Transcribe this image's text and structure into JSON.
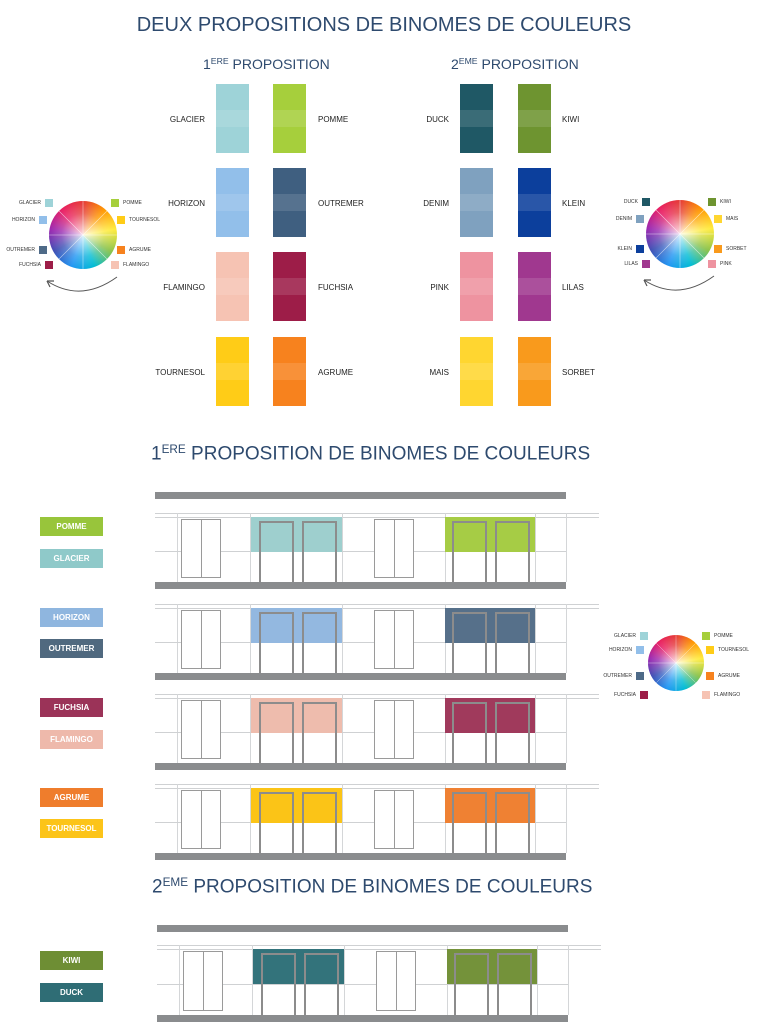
{
  "titles": {
    "main": "DEUX PROPOSITIONS DE BINOMES DE COULEURS",
    "p1_num": "1",
    "p1_sup": "ERE",
    "p1_rest": " PROPOSITION",
    "p2_num": "2",
    "p2_sup": "EME",
    "p2_rest": " PROPOSITION",
    "s1_num": "1",
    "s1_sup": "ERE",
    "s1_rest": " PROPOSITION DE BINOMES DE COULEURS",
    "s2_num": "2",
    "s2_sup": "EME",
    "s2_rest": " PROPOSITION DE BINOMES DE COULEURS"
  },
  "proposition1": {
    "left": [
      {
        "name": "GLACIER",
        "color": "#9ed3d8"
      },
      {
        "name": "HORIZON",
        "color": "#92bfea"
      },
      {
        "name": "FLAMINGO",
        "color": "#f6c3b3"
      },
      {
        "name": "TOURNESOL",
        "color": "#ffcc17"
      }
    ],
    "right": [
      {
        "name": "POMME",
        "color": "#a6cf3c"
      },
      {
        "name": "OUTREMER",
        "color": "#3f5f80"
      },
      {
        "name": "FUCHSIA",
        "color": "#9d1d48"
      },
      {
        "name": "AGRUME",
        "color": "#f7821e"
      }
    ]
  },
  "proposition2": {
    "left": [
      {
        "name": "DUCK",
        "color": "#1f5865"
      },
      {
        "name": "DENIM",
        "color": "#7fa1bf"
      },
      {
        "name": "PINK",
        "color": "#ee93a0"
      },
      {
        "name": "MAIS",
        "color": "#ffd630"
      }
    ],
    "right": [
      {
        "name": "KIWI",
        "color": "#6e9430"
      },
      {
        "name": "KLEIN",
        "color": "#0c3f9c"
      },
      {
        "name": "LILAS",
        "color": "#a0388f"
      },
      {
        "name": "SORBET",
        "color": "#f99a1c"
      }
    ]
  },
  "wheel1": {
    "labels": [
      {
        "name": "GLACIER",
        "color": "#9ed3d8"
      },
      {
        "name": "POMME",
        "color": "#a6cf3c"
      },
      {
        "name": "HORIZON",
        "color": "#92bfea"
      },
      {
        "name": "TOURNESOL",
        "color": "#ffcc17"
      },
      {
        "name": "OUTREMER",
        "color": "#4e6a88"
      },
      {
        "name": "AGRUME",
        "color": "#f7821e"
      },
      {
        "name": "FUCHSIA",
        "color": "#9d1d48"
      },
      {
        "name": "FLAMINGO",
        "color": "#f6c3b3"
      }
    ]
  },
  "wheel2": {
    "labels": [
      {
        "name": "DUCK",
        "color": "#1f5865"
      },
      {
        "name": "KIWI",
        "color": "#6e9430"
      },
      {
        "name": "DENIM",
        "color": "#7fa1bf"
      },
      {
        "name": "MAIS",
        "color": "#ffd630"
      },
      {
        "name": "KLEIN",
        "color": "#0c3f9c"
      },
      {
        "name": "SORBET",
        "color": "#f99a1c"
      },
      {
        "name": "LILAS",
        "color": "#a0388f"
      },
      {
        "name": "PINK",
        "color": "#ee93a0"
      }
    ]
  },
  "section1_bands": [
    {
      "top": "POMME",
      "top_color": "#98c53b",
      "bottom": "GLACIER",
      "bottom_color": "#8fc9c9",
      "panel_a": "#9ecfce",
      "panel_b": "#a6cc45"
    },
    {
      "top": "HORIZON",
      "top_color": "#8fb6df",
      "bottom": "OUTREMER",
      "bottom_color": "#50697f",
      "panel_a": "#93b8e0",
      "panel_b": "#56708a"
    },
    {
      "top": "FUCHSIA",
      "top_color": "#9b3358",
      "bottom": "FLAMINGO",
      "bottom_color": "#eeb9ab",
      "panel_a": "#eebcad",
      "panel_b": "#a03a5c"
    },
    {
      "top": "AGRUME",
      "top_color": "#ef7d2c",
      "bottom": "TOURNESOL",
      "bottom_color": "#fcc419",
      "panel_a": "#fbc417",
      "panel_b": "#ef8133"
    }
  ],
  "section2_bands": [
    {
      "top": "KIWI",
      "top_color": "#6e8e34",
      "bottom": "DUCK",
      "bottom_color": "#2f6d75",
      "panel_a": "#33737b",
      "panel_b": "#74923a"
    }
  ]
}
